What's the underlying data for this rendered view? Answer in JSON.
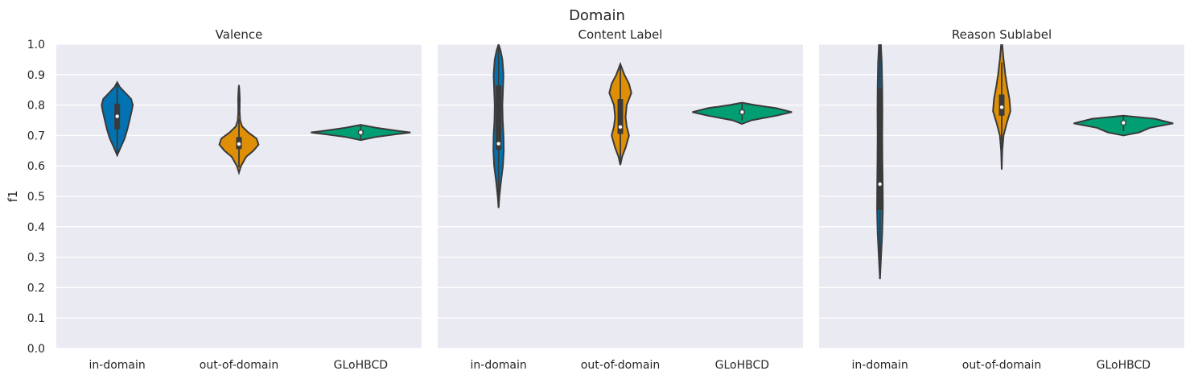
{
  "figure": {
    "suptitle": "Domain",
    "ylabel": "f1"
  },
  "chart_data": [
    {
      "type": "violin",
      "title": "Valence",
      "categories": [
        "in-domain",
        "out-of-domain",
        "GLoHBCD"
      ],
      "ylim": [
        0,
        1
      ],
      "yticks": [
        "0.0",
        "0.1",
        "0.2",
        "0.3",
        "0.4",
        "0.5",
        "0.6",
        "0.7",
        "0.8",
        "0.9",
        "1.0"
      ],
      "grid": true,
      "series": [
        {
          "category": "in-domain",
          "color": "#0173b2",
          "min": 0.635,
          "max": 0.875,
          "q1": 0.72,
          "median": 0.763,
          "q3": 0.805,
          "width": 0.27,
          "profile": [
            [
              0.635,
              0.0
            ],
            [
              0.66,
              0.2
            ],
            [
              0.69,
              0.45
            ],
            [
              0.72,
              0.62
            ],
            [
              0.75,
              0.75
            ],
            [
              0.78,
              0.88
            ],
            [
              0.8,
              0.95
            ],
            [
              0.82,
              0.85
            ],
            [
              0.84,
              0.5
            ],
            [
              0.86,
              0.15
            ],
            [
              0.875,
              0.0
            ]
          ]
        },
        {
          "category": "out-of-domain",
          "color": "#de8f05",
          "min": 0.578,
          "max": 0.866,
          "q1": 0.655,
          "median": 0.672,
          "q3": 0.695,
          "width": 0.34,
          "profile": [
            [
              0.578,
              0.0
            ],
            [
              0.6,
              0.1
            ],
            [
              0.63,
              0.35
            ],
            [
              0.65,
              0.7
            ],
            [
              0.67,
              0.95
            ],
            [
              0.69,
              0.85
            ],
            [
              0.71,
              0.45
            ],
            [
              0.73,
              0.15
            ],
            [
              0.75,
              0.06
            ],
            [
              0.78,
              0.03
            ],
            [
              0.82,
              0.04
            ],
            [
              0.85,
              0.02
            ],
            [
              0.866,
              0.0
            ]
          ]
        },
        {
          "category": "GLoHBCD",
          "color": "#029e73",
          "min": 0.685,
          "max": 0.735,
          "q1": 0.703,
          "median": 0.71,
          "q3": 0.717,
          "width": 0.86,
          "profile": [
            [
              0.685,
              0.0
            ],
            [
              0.695,
              0.28
            ],
            [
              0.705,
              0.72
            ],
            [
              0.71,
              0.95
            ],
            [
              0.715,
              0.72
            ],
            [
              0.725,
              0.3
            ],
            [
              0.735,
              0.0
            ]
          ]
        }
      ]
    },
    {
      "type": "violin",
      "title": "Content Label",
      "categories": [
        "in-domain",
        "out-of-domain",
        "GLoHBCD"
      ],
      "ylim": [
        0,
        1
      ],
      "yticks": [
        "0.0",
        "0.1",
        "0.2",
        "0.3",
        "0.4",
        "0.5",
        "0.6",
        "0.7",
        "0.8",
        "0.9",
        "1.0"
      ],
      "grid": true,
      "series": [
        {
          "category": "in-domain",
          "color": "#0173b2",
          "min": 0.462,
          "max": 1.0,
          "q1": 0.652,
          "median": 0.673,
          "q3": 0.865,
          "width": 0.09,
          "profile": [
            [
              0.462,
              0.0
            ],
            [
              0.5,
              0.15
            ],
            [
              0.55,
              0.45
            ],
            [
              0.6,
              0.8
            ],
            [
              0.65,
              0.95
            ],
            [
              0.7,
              0.9
            ],
            [
              0.75,
              0.75
            ],
            [
              0.8,
              0.7
            ],
            [
              0.85,
              0.8
            ],
            [
              0.9,
              0.9
            ],
            [
              0.95,
              0.7
            ],
            [
              0.98,
              0.35
            ],
            [
              1.0,
              0.0
            ]
          ]
        },
        {
          "category": "out-of-domain",
          "color": "#de8f05",
          "min": 0.603,
          "max": 0.935,
          "q1": 0.705,
          "median": 0.728,
          "q3": 0.82,
          "width": 0.19,
          "profile": [
            [
              0.603,
              0.0
            ],
            [
              0.63,
              0.15
            ],
            [
              0.66,
              0.45
            ],
            [
              0.7,
              0.75
            ],
            [
              0.73,
              0.55
            ],
            [
              0.76,
              0.45
            ],
            [
              0.8,
              0.55
            ],
            [
              0.84,
              0.95
            ],
            [
              0.87,
              0.75
            ],
            [
              0.9,
              0.35
            ],
            [
              0.935,
              0.0
            ]
          ]
        },
        {
          "category": "GLoHBCD",
          "color": "#029e73",
          "min": 0.738,
          "max": 0.808,
          "q1": 0.77,
          "median": 0.777,
          "q3": 0.784,
          "width": 0.86,
          "profile": [
            [
              0.738,
              0.0
            ],
            [
              0.75,
              0.18
            ],
            [
              0.765,
              0.65
            ],
            [
              0.777,
              0.95
            ],
            [
              0.79,
              0.65
            ],
            [
              0.8,
              0.25
            ],
            [
              0.808,
              0.0
            ]
          ]
        }
      ]
    },
    {
      "type": "violin",
      "title": "Reason Sublabel",
      "categories": [
        "in-domain",
        "out-of-domain",
        "GLoHBCD"
      ],
      "ylim": [
        0,
        1
      ],
      "yticks": [
        "0.0",
        "0.1",
        "0.2",
        "0.3",
        "0.4",
        "0.5",
        "0.6",
        "0.7",
        "0.8",
        "0.9",
        "1.0"
      ],
      "grid": true,
      "series": [
        {
          "category": "in-domain",
          "color": "#0173b2",
          "min": 0.228,
          "max": 1.0,
          "q1": 0.455,
          "median": 0.54,
          "q3": 0.855,
          "width": 0.05,
          "profile": [
            [
              0.228,
              0.0
            ],
            [
              0.3,
              0.35
            ],
            [
              0.38,
              0.75
            ],
            [
              0.46,
              0.95
            ],
            [
              0.54,
              0.9
            ],
            [
              0.62,
              0.8
            ],
            [
              0.7,
              0.75
            ],
            [
              0.78,
              0.8
            ],
            [
              0.86,
              0.75
            ],
            [
              0.94,
              0.6
            ],
            [
              1.0,
              0.3
            ]
          ]
        },
        {
          "category": "out-of-domain",
          "color": "#de8f05",
          "min": 0.588,
          "max": 1.0,
          "q1": 0.765,
          "median": 0.793,
          "q3": 0.835,
          "width": 0.15,
          "profile": [
            [
              0.588,
              0.0
            ],
            [
              0.65,
              0.06
            ],
            [
              0.7,
              0.2
            ],
            [
              0.74,
              0.55
            ],
            [
              0.78,
              0.95
            ],
            [
              0.82,
              0.85
            ],
            [
              0.86,
              0.6
            ],
            [
              0.9,
              0.4
            ],
            [
              0.95,
              0.2
            ],
            [
              1.0,
              0.05
            ]
          ]
        },
        {
          "category": "GLoHBCD",
          "color": "#029e73",
          "min": 0.7,
          "max": 0.765,
          "q1": 0.735,
          "median": 0.742,
          "q3": 0.749,
          "width": 0.86,
          "profile": [
            [
              0.7,
              0.0
            ],
            [
              0.71,
              0.3
            ],
            [
              0.725,
              0.5
            ],
            [
              0.74,
              0.95
            ],
            [
              0.755,
              0.6
            ],
            [
              0.765,
              0.0
            ]
          ]
        }
      ]
    }
  ]
}
